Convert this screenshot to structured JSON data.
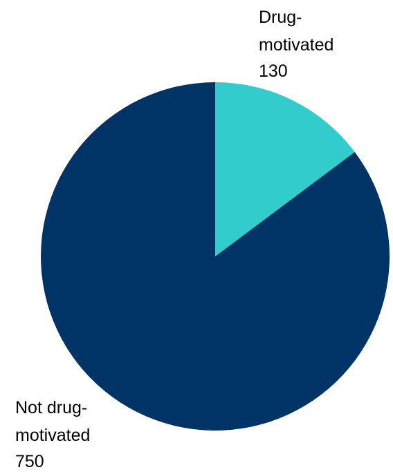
{
  "chart_data": {
    "type": "pie",
    "title": "",
    "slices": [
      {
        "label_lines": [
          "Drug-",
          "motivated"
        ],
        "value": 130,
        "value_text": "130",
        "color": "#33cccc"
      },
      {
        "label_lines": [
          "Not drug-",
          "motivated"
        ],
        "value": 750,
        "value_text": "750",
        "color": "#003366"
      }
    ],
    "legend": "none"
  }
}
